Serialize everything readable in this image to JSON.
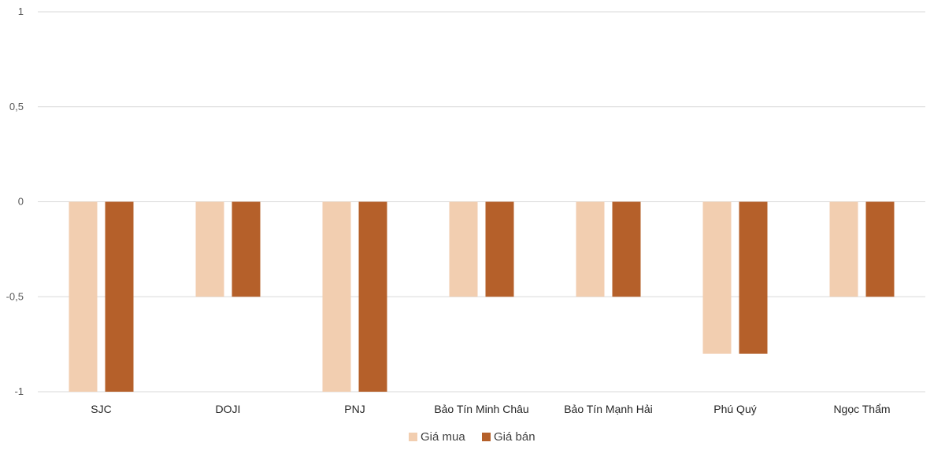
{
  "chart_data": {
    "type": "bar",
    "title": "",
    "xlabel": "",
    "ylabel": "",
    "categories": [
      "SJC",
      "DOJI",
      "PNJ",
      "Bảo Tín Minh Châu",
      "Bảo Tín Mạnh Hải",
      "Phú Quý",
      "Ngọc Thẩm"
    ],
    "series": [
      {
        "name": "Giá mua",
        "color": "#f2ceb0",
        "values": [
          -1,
          -0.5,
          -1,
          -0.5,
          -0.5,
          -0.8,
          -0.5
        ]
      },
      {
        "name": "Giá bán",
        "color": "#b5602a",
        "values": [
          -1,
          -0.5,
          -1,
          -0.5,
          -0.5,
          -0.8,
          -0.5
        ]
      }
    ],
    "ylim": [
      -1,
      1
    ],
    "yticks": [
      1,
      0.5,
      0,
      -0.5,
      -1
    ],
    "ytick_labels": [
      "1",
      "0,5",
      "0",
      "-0,5",
      "-1"
    ],
    "grid": true,
    "legend_position": "bottom"
  }
}
